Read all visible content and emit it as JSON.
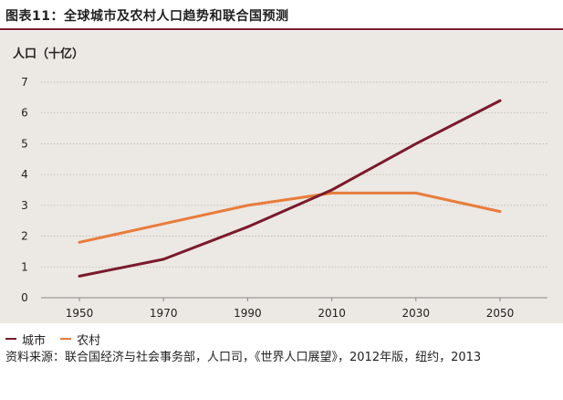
{
  "header": {
    "title": "图表11：全球城市及农村人口趋势和联合国预测"
  },
  "chart_data": {
    "type": "line",
    "title": "图表11：全球城市及农村人口趋势和联合国预测",
    "ylabel": "人口（十亿）",
    "xlabel": "",
    "x": [
      "1950",
      "1970",
      "1990",
      "2010",
      "2030",
      "2050"
    ],
    "yticks": [
      "0",
      "1",
      "2",
      "3",
      "4",
      "5",
      "6",
      "7"
    ],
    "ylim": [
      0,
      7
    ],
    "grid": true,
    "series": [
      {
        "name": "城市",
        "color": "#7a1a2c",
        "values": [
          0.7,
          1.25,
          2.3,
          3.5,
          5.0,
          6.4
        ]
      },
      {
        "name": "农村",
        "color": "#e87c3c",
        "values": [
          1.8,
          2.4,
          3.0,
          3.4,
          3.4,
          2.8
        ]
      }
    ]
  },
  "source": {
    "text": "资料来源：联合国经济与社会事务部，人口司，《世界人口展望》，2012年版，纽约，2013"
  }
}
